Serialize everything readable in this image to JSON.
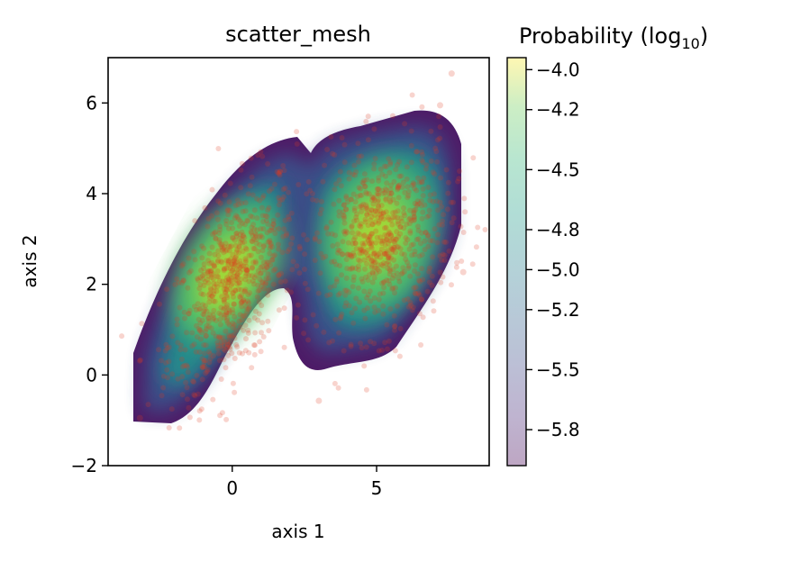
{
  "chart_data": {
    "type": "scatter",
    "title": "scatter_mesh",
    "xlabel": "axis 1",
    "ylabel": "axis 2",
    "xlim": [
      -4.3,
      8.9
    ],
    "ylim": [
      -2,
      7
    ],
    "xticks": [
      0,
      5
    ],
    "xtick_labels": [
      "0",
      "5"
    ],
    "yticks": [
      -2,
      0,
      2,
      4,
      6
    ],
    "ytick_labels": [
      "−2",
      "0",
      "2",
      "4",
      "6"
    ],
    "grid": false,
    "clusters": [
      {
        "center": [
          0.0,
          2.0
        ],
        "spread": [
          1.1,
          1.2
        ],
        "correlation": 0.55,
        "points": 700
      },
      {
        "center": [
          5.2,
          3.0
        ],
        "spread": [
          1.2,
          1.05
        ],
        "correlation": 0.2,
        "points": 700
      }
    ],
    "outliers": [
      [
        7.6,
        6.65
      ],
      [
        7.2,
        5.95
      ],
      [
        3.0,
        -0.57
      ],
      [
        8.0,
        2.27
      ],
      [
        -3.2,
        -0.95
      ]
    ],
    "point_color": "#e03a1e",
    "colorbar": {
      "label_main": "Probability (log",
      "label_sub": "10",
      "label_end": ")",
      "min": -5.98,
      "max": -3.94,
      "ticks": [
        -4.0,
        -4.2,
        -4.5,
        -4.8,
        -5.0,
        -5.2,
        -5.5,
        -5.8
      ],
      "tick_labels": [
        "−4.0",
        "−4.2",
        "−4.5",
        "−4.8",
        "−5.0",
        "−5.2",
        "−5.5",
        "−5.8"
      ],
      "colormap": "viridis",
      "alpha": 0.35
    }
  }
}
